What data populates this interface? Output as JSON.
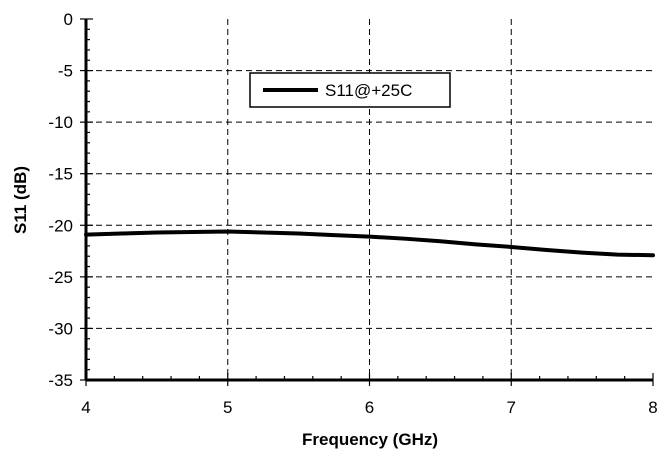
{
  "chart_data": {
    "type": "line",
    "xlabel": "Frequency (GHz)",
    "ylabel": "S11 (dB)",
    "xlim": [
      4,
      8
    ],
    "ylim": [
      -35,
      0
    ],
    "x_ticks": [
      "4",
      "5",
      "6",
      "7",
      "8"
    ],
    "y_ticks": [
      "0",
      "-5",
      "-10",
      "-15",
      "-20",
      "-25",
      "-30",
      "-35"
    ],
    "grid": true,
    "legend_position": "top-center",
    "series": [
      {
        "name": "S11@+25C",
        "color": "#000000",
        "x": [
          4.0,
          4.25,
          4.5,
          4.75,
          5.0,
          5.25,
          5.5,
          5.75,
          6.0,
          6.25,
          6.5,
          6.75,
          7.0,
          7.25,
          7.5,
          7.75,
          8.0
        ],
        "y": [
          -20.9,
          -20.8,
          -20.7,
          -20.65,
          -20.6,
          -20.7,
          -20.8,
          -20.95,
          -21.1,
          -21.3,
          -21.55,
          -21.85,
          -22.1,
          -22.4,
          -22.65,
          -22.85,
          -22.9
        ]
      }
    ]
  }
}
